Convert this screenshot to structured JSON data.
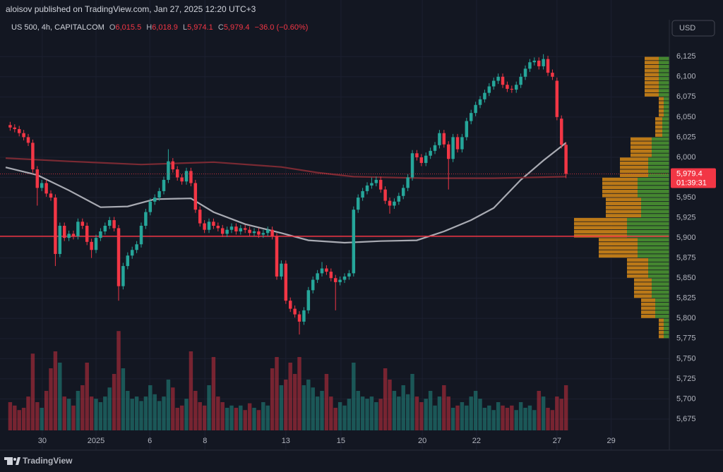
{
  "chart_data": {
    "type": "candlestick",
    "publisher": "aloisov published on TradingView.com, Jan 27, 2025 12:20 UTC+3",
    "symbol": "US 500, 4h, CAPITALCOM",
    "legend": [
      {
        "key": "O",
        "label": "6,015.5"
      },
      {
        "key": "H",
        "label": "6,018.9"
      },
      {
        "key": "L",
        "label": "5,974.1"
      },
      {
        "key": "C",
        "label": "5,979.4"
      }
    ],
    "change": "−36.0 (−0.60%)",
    "currency": "USD",
    "last_price_label": "5,979.4",
    "countdown": "01:39:31",
    "brand": "TradingView",
    "up_color": "#26a69a",
    "down_color": "#f23645",
    "open": [
      6040,
      6037,
      6035,
      6030,
      6025,
      6018,
      5985,
      5962,
      5968,
      5955,
      5950,
      5880,
      5915,
      5900,
      5905,
      5902,
      5920,
      5915,
      5895,
      5885,
      5900,
      5908,
      5915,
      5922,
      5912,
      5840,
      5865,
      5878,
      5885,
      5892,
      5915,
      5932,
      5945,
      5950,
      5958,
      5972,
      5995,
      5985,
      5975,
      5970,
      5983,
      5968,
      5935,
      5918,
      5910,
      5920,
      5915,
      5912,
      5905,
      5910,
      5914,
      5908,
      5912,
      5910,
      5906,
      5908,
      5904,
      5906,
      5910,
      5902,
      5852,
      5868,
      5822,
      5812,
      5805,
      5796,
      5810,
      5835,
      5848,
      5856,
      5862,
      5858,
      5850,
      5845,
      5848,
      5852,
      5856,
      5935,
      5950,
      5958,
      5965,
      5968,
      5972,
      5960,
      5946,
      5940,
      5945,
      5952,
      5962,
      5975,
      6005,
      6000,
      5993,
      6002,
      6008,
      6015,
      6030,
      6016,
      5998,
      6025,
      6010,
      6025,
      6045,
      6055,
      6065,
      6072,
      6080,
      6088,
      6095,
      6100,
      6090,
      6085,
      6084,
      6090,
      6100,
      6110,
      6118,
      6120,
      6113,
      6122,
      6105,
      6095,
      6048,
      6015.5
    ],
    "high": [
      6044,
      6041,
      6039,
      6034,
      6029,
      6022,
      5989,
      5972,
      5972,
      5959,
      5954,
      5919,
      5919,
      5909,
      5909,
      5924,
      5924,
      5919,
      5899,
      5904,
      5912,
      5919,
      5926,
      5926,
      5916,
      5869,
      5882,
      5889,
      5896,
      5919,
      5936,
      5949,
      5954,
      5962,
      5976,
      6010,
      5999,
      5989,
      5979,
      5987,
      5987,
      5972,
      5939,
      5922,
      5924,
      5924,
      5919,
      5916,
      5914,
      5918,
      5918,
      5916,
      5916,
      5914,
      5912,
      5912,
      5910,
      5914,
      5914,
      5906,
      5872,
      5872,
      5826,
      5816,
      5809,
      5814,
      5839,
      5852,
      5860,
      5870,
      5866,
      5862,
      5854,
      5852,
      5856,
      5860,
      5939,
      5954,
      5962,
      5969,
      5975,
      5976,
      5976,
      5964,
      5950,
      5949,
      5956,
      5966,
      5979,
      6009,
      6009,
      6004,
      6006,
      6012,
      6019,
      6034,
      6034,
      6020,
      6029,
      6029,
      6029,
      6049,
      6059,
      6069,
      6076,
      6084,
      6092,
      6099,
      6104,
      6104,
      6094,
      6089,
      6094,
      6104,
      6114,
      6122,
      6124,
      6124,
      6128,
      6126,
      6109,
      6099,
      6052,
      6018.9
    ],
    "low": [
      6033,
      6031,
      6026,
      6021,
      6014,
      5981,
      5940,
      5958,
      5951,
      5946,
      5865,
      5876,
      5896,
      5896,
      5898,
      5898,
      5911,
      5891,
      5875,
      5881,
      5896,
      5904,
      5911,
      5908,
      5822,
      5836,
      5861,
      5874,
      5881,
      5888,
      5911,
      5928,
      5941,
      5946,
      5954,
      5968,
      5981,
      5971,
      5966,
      5966,
      5964,
      5931,
      5914,
      5906,
      5906,
      5911,
      5908,
      5901,
      5901,
      5906,
      5904,
      5904,
      5906,
      5902,
      5902,
      5900,
      5900,
      5902,
      5898,
      5848,
      5848,
      5818,
      5808,
      5801,
      5780,
      5792,
      5806,
      5831,
      5844,
      5852,
      5854,
      5846,
      5810,
      5841,
      5844,
      5848,
      5852,
      5931,
      5946,
      5954,
      5961,
      5964,
      5956,
      5942,
      5930,
      5936,
      5941,
      5948,
      5958,
      5971,
      5996,
      5989,
      5989,
      5998,
      6004,
      6011,
      6012,
      5960,
      5994,
      6006,
      6006,
      6021,
      6041,
      6051,
      6061,
      6068,
      6076,
      6084,
      6091,
      6086,
      6081,
      6080,
      6080,
      6086,
      6096,
      6106,
      6114,
      6109,
      6109,
      6101,
      6096,
      6046,
      6011,
      5974.1
    ],
    "close": [
      6037,
      6035,
      6030,
      6025,
      6018,
      5985,
      5962,
      5968,
      5955,
      5950,
      5880,
      5915,
      5900,
      5905,
      5902,
      5920,
      5915,
      5895,
      5885,
      5900,
      5908,
      5915,
      5922,
      5912,
      5840,
      5865,
      5878,
      5885,
      5892,
      5915,
      5932,
      5945,
      5950,
      5958,
      5972,
      5995,
      5985,
      5975,
      5970,
      5983,
      5968,
      5935,
      5918,
      5910,
      5920,
      5915,
      5912,
      5905,
      5910,
      5914,
      5908,
      5912,
      5910,
      5906,
      5908,
      5904,
      5906,
      5910,
      5902,
      5852,
      5868,
      5822,
      5812,
      5805,
      5796,
      5810,
      5835,
      5848,
      5856,
      5862,
      5858,
      5850,
      5845,
      5848,
      5852,
      5856,
      5935,
      5950,
      5958,
      5965,
      5968,
      5972,
      5960,
      5946,
      5940,
      5945,
      5952,
      5962,
      5975,
      6005,
      6000,
      5993,
      6002,
      6008,
      6015,
      6030,
      6016,
      5998,
      6025,
      6010,
      6025,
      6045,
      6055,
      6065,
      6072,
      6080,
      6088,
      6095,
      6100,
      6090,
      6085,
      6084,
      6090,
      6100,
      6110,
      6118,
      6120,
      6113,
      6122,
      6105,
      6100,
      6050,
      6015.5,
      5979.4
    ],
    "volume": [
      25,
      22,
      18,
      20,
      30,
      68,
      25,
      20,
      35,
      55,
      70,
      60,
      30,
      28,
      22,
      35,
      40,
      60,
      30,
      28,
      25,
      30,
      38,
      50,
      88,
      55,
      35,
      28,
      30,
      26,
      30,
      40,
      32,
      26,
      30,
      45,
      38,
      20,
      22,
      28,
      70,
      35,
      25,
      22,
      40,
      65,
      30,
      25,
      20,
      22,
      20,
      22,
      18,
      24,
      20,
      18,
      25,
      22,
      55,
      65,
      40,
      45,
      60,
      50,
      65,
      40,
      45,
      38,
      30,
      35,
      50,
      30,
      20,
      25,
      22,
      28,
      60,
      35,
      30,
      28,
      30,
      25,
      28,
      55,
      45,
      35,
      30,
      40,
      32,
      50,
      30,
      25,
      28,
      35,
      22,
      30,
      40,
      30,
      20,
      22,
      25,
      22,
      30,
      35,
      28,
      20,
      22,
      18,
      25,
      22,
      20,
      22,
      18,
      25,
      20,
      22,
      18,
      35,
      30,
      20,
      18,
      30,
      28,
      40
    ],
    "volume_lim": [
      0,
      100
    ],
    "xlim": [
      -1,
      145.4
    ],
    "xticks": [
      {
        "value": 7.1,
        "label": "30"
      },
      {
        "value": 19,
        "label": "2025"
      },
      {
        "value": 30.9,
        "label": "6"
      },
      {
        "value": 43.1,
        "label": "8"
      },
      {
        "value": 61,
        "label": "13"
      },
      {
        "value": 73.2,
        "label": "15"
      },
      {
        "value": 91.2,
        "label": "20"
      },
      {
        "value": 103.2,
        "label": "22"
      },
      {
        "value": 121,
        "label": "27"
      },
      {
        "value": 133,
        "label": "29"
      }
    ],
    "ylim": [
      5661,
      6169
    ],
    "yticks": [
      {
        "value": 5675,
        "label": "5,675"
      },
      {
        "value": 5700,
        "label": "5,700"
      },
      {
        "value": 5725,
        "label": "5,725"
      },
      {
        "value": 5750,
        "label": "5,750"
      },
      {
        "value": 5775,
        "label": "5,775"
      },
      {
        "value": 5800,
        "label": "5,800"
      },
      {
        "value": 5825,
        "label": "5,825"
      },
      {
        "value": 5850,
        "label": "5,850"
      },
      {
        "value": 5875,
        "label": "5,875"
      },
      {
        "value": 5900,
        "label": "5,900"
      },
      {
        "value": 5925,
        "label": "5,925"
      },
      {
        "value": 5950,
        "label": "5,950"
      },
      {
        "value": 5975,
        "label": "5,975"
      },
      {
        "value": 6000,
        "label": "6,000"
      },
      {
        "value": 6025,
        "label": "6,025"
      },
      {
        "value": 6050,
        "label": "6,050"
      },
      {
        "value": 6075,
        "label": "6,075"
      },
      {
        "value": 6100,
        "label": "6,100"
      },
      {
        "value": 6125,
        "label": "6,125"
      }
    ],
    "grid": true,
    "moving_averages": [
      {
        "color": "#a9abb3",
        "x": [
          -1,
          6,
          13,
          20,
          26,
          32,
          40,
          45,
          52,
          60,
          66,
          74,
          82,
          90,
          96,
          102,
          107,
          113,
          118,
          123
        ],
        "values": [
          5987.5,
          5978,
          5959,
          5938,
          5939,
          5948,
          5949,
          5932,
          5917,
          5906,
          5897,
          5894,
          5896,
          5897,
          5908,
          5922,
          5937,
          5972,
          5996,
          6018
        ]
      },
      {
        "color": "#7a2a33",
        "x": [
          -1,
          13,
          29,
          45,
          60,
          68,
          76,
          92,
          107,
          123
        ],
        "values": [
          5999,
          5995,
          5991,
          5994,
          5988,
          5981,
          5976,
          5974,
          5974,
          5976
        ]
      }
    ],
    "hline": {
      "value": 5902,
      "color": "#f23645"
    },
    "volume_profile": {
      "bins": [
        5775,
        5800,
        5825,
        5850,
        5875,
        5900,
        5925,
        5950,
        5975,
        6000,
        6025,
        6050,
        6075,
        6100,
        6125
      ],
      "up": [
        8,
        20,
        25,
        30,
        45,
        60,
        40,
        45,
        30,
        25,
        10,
        8,
        15,
        15
      ],
      "down": [
        7,
        20,
        25,
        30,
        55,
        75,
        50,
        50,
        40,
        30,
        10,
        7,
        20,
        20
      ],
      "lim": [
        0,
        150
      ],
      "up_color": "#4e9a32",
      "down_color": "#d98b16"
    }
  }
}
